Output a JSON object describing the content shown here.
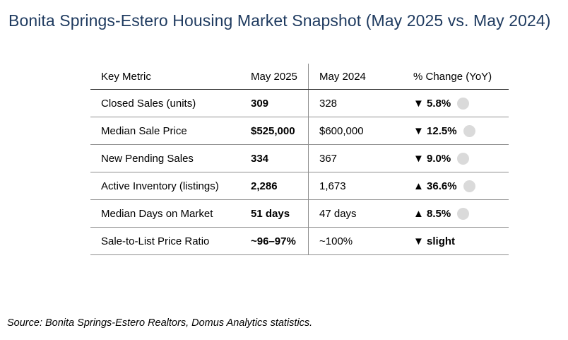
{
  "title": "Bonita Springs-Estero Housing Market Snapshot (May 2025 vs. May 2024)",
  "colors": {
    "title": "#1e3a5f",
    "dot": "#dadada",
    "row_line": "#8f8f8f"
  },
  "table": {
    "headers": [
      "Key Metric",
      "May 2025",
      "May 2024",
      "% Change (YoY)"
    ],
    "rows": [
      {
        "metric": "Closed Sales (units)",
        "may2025": "309",
        "may2024": "328",
        "change": "▼ 5.8%",
        "dot": true
      },
      {
        "metric": "Median Sale Price",
        "may2025": "$525,000",
        "may2024": "$600,000",
        "change": "▼ 12.5%",
        "dot": true
      },
      {
        "metric": "New Pending Sales",
        "may2025": "334",
        "may2024": "367",
        "change": "▼ 9.0%",
        "dot": true
      },
      {
        "metric": "Active Inventory (listings)",
        "may2025": "2,286",
        "may2024": "1,673",
        "change": "▲ 36.6%",
        "dot": true
      },
      {
        "metric": "Median Days on Market",
        "may2025": "51 days",
        "may2024": "47 days",
        "change": "▲ 8.5%",
        "dot": true
      },
      {
        "metric": "Sale-to-List Price Ratio",
        "may2025": "~96–97%",
        "may2024": "~100%",
        "change": "▼ slight",
        "dot": false
      }
    ]
  },
  "source": "Source: Bonita Springs-Estero Realtors, Domus Analytics statistics."
}
